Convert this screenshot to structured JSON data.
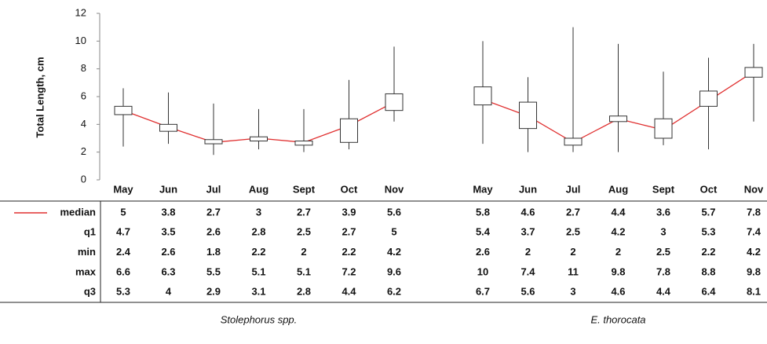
{
  "chart_data": {
    "type": "box",
    "ylabel": "Total Length, cm",
    "ylim": [
      0,
      12
    ],
    "yticks": [
      0,
      2,
      4,
      6,
      8,
      10,
      12
    ],
    "median_color": "#e03030",
    "stats": [
      "median",
      "q1",
      "min",
      "max",
      "q3"
    ],
    "groups": [
      {
        "name": "Stolephorus spp.",
        "categories": [
          "May",
          "Jun",
          "Jul",
          "Aug",
          "Sept",
          "Oct",
          "Nov"
        ],
        "median": [
          5,
          3.8,
          2.7,
          3,
          2.7,
          3.9,
          5.6
        ],
        "q1": [
          4.7,
          3.5,
          2.6,
          2.8,
          2.5,
          2.7,
          5
        ],
        "min": [
          2.4,
          2.6,
          1.8,
          2.2,
          2,
          2.2,
          4.2
        ],
        "max": [
          6.6,
          6.3,
          5.5,
          5.1,
          5.1,
          7.2,
          9.6
        ],
        "q3": [
          5.3,
          4,
          2.9,
          3.1,
          2.8,
          4.4,
          6.2
        ]
      },
      {
        "name": "E. thorocata",
        "categories": [
          "May",
          "Jun",
          "Jul",
          "Aug",
          "Sept",
          "Oct",
          "Nov"
        ],
        "median": [
          5.8,
          4.6,
          2.7,
          4.4,
          3.6,
          5.7,
          7.8
        ],
        "q1": [
          5.4,
          3.7,
          2.5,
          4.2,
          3,
          5.3,
          7.4
        ],
        "min": [
          2.6,
          2,
          2,
          2,
          2.5,
          2.2,
          4.2
        ],
        "max": [
          10,
          7.4,
          11,
          9.8,
          7.8,
          8.8,
          9.8
        ],
        "q3": [
          6.7,
          5.6,
          3,
          4.6,
          4.4,
          6.4,
          8.1
        ]
      }
    ]
  }
}
